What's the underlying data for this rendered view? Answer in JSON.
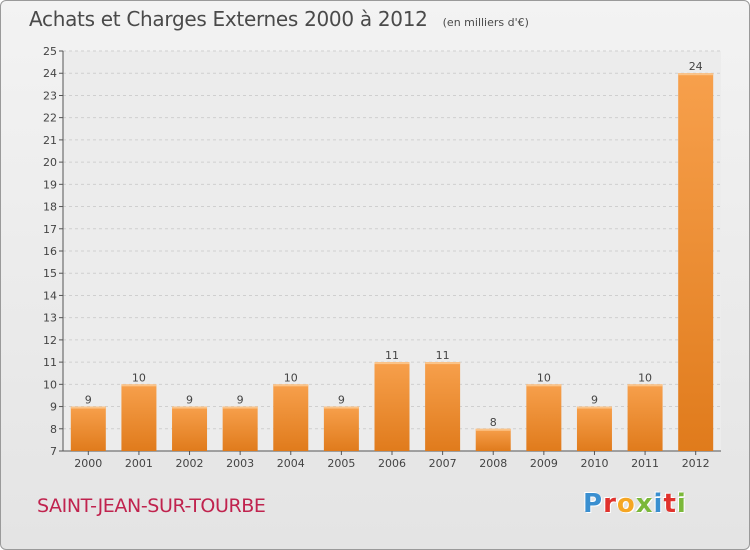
{
  "header": {
    "title": "Achats et Charges Externes 2000 à 2012",
    "unit": "(en milliers d'€)"
  },
  "footer": {
    "place": "SAINT-JEAN-SUR-TOURBE",
    "logo_letters": [
      "P",
      "r",
      "o",
      "x",
      "i",
      "t",
      "i"
    ],
    "logo_colors": [
      "#3a8fd0",
      "#e0322d",
      "#f5a623",
      "#7bb83a",
      "#3a8fd0",
      "#e0322d",
      "#7bb83a"
    ]
  },
  "chart_data": {
    "type": "bar",
    "title": "Achats et Charges Externes 2000 à 2012",
    "subtitle": "(en milliers d'€)",
    "categories": [
      "2000",
      "2001",
      "2002",
      "2003",
      "2004",
      "2005",
      "2006",
      "2007",
      "2008",
      "2009",
      "2010",
      "2011",
      "2012"
    ],
    "values": [
      9,
      10,
      9,
      9,
      10,
      9,
      11,
      11,
      8,
      10,
      9,
      10,
      24
    ],
    "data_labels": [
      "9",
      "10",
      "9",
      "9",
      "10",
      "9",
      "11",
      "11",
      "8",
      "10",
      "9",
      "10",
      "24"
    ],
    "ylim": [
      7,
      25
    ],
    "yticks": [
      7,
      8,
      9,
      10,
      11,
      12,
      13,
      14,
      15,
      16,
      17,
      18,
      19,
      20,
      21,
      22,
      23,
      24,
      25
    ],
    "grid": true,
    "bar_color_top": "#f7a04c",
    "bar_color_bottom": "#e07b1c"
  }
}
